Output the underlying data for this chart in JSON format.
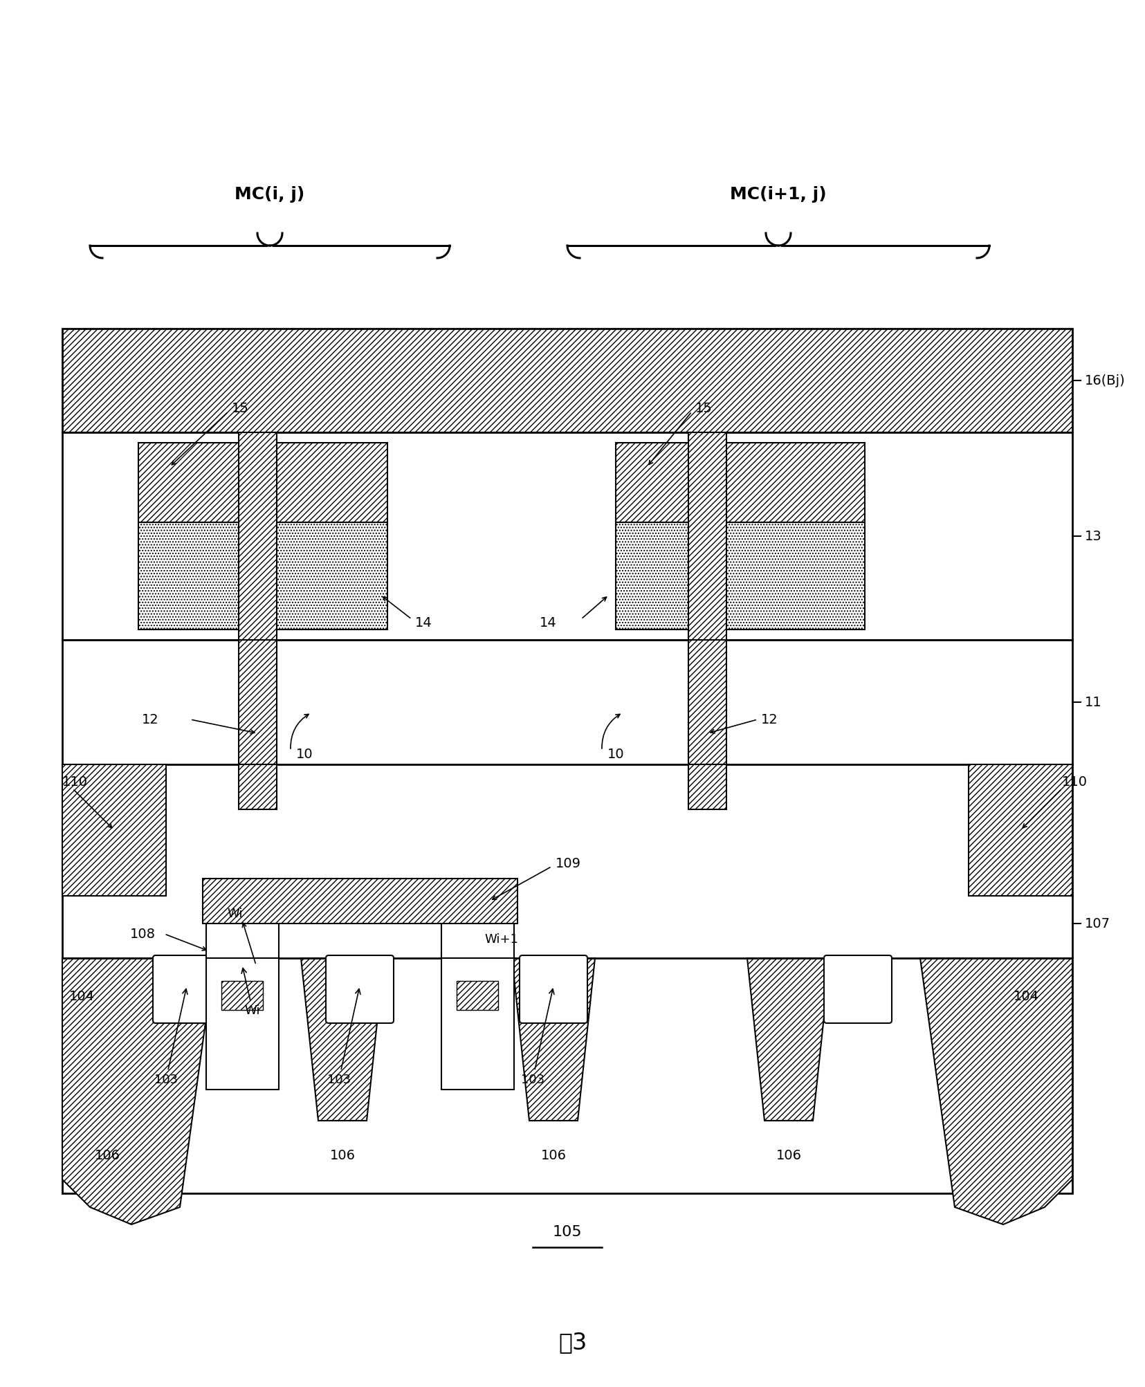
{
  "bg_color": "#ffffff",
  "lc": "#000000",
  "labels": {
    "MC_ij": "MC(i, j)",
    "MC_i1j": "MC(i+1, j)",
    "n16": "16(Bj)",
    "n13": "13",
    "n15": "15",
    "n14": "14",
    "n11": "11",
    "n12": "12",
    "n10": "10",
    "n107": "107",
    "n110": "110",
    "n109": "109",
    "n108": "108",
    "n104": "104",
    "nWi": "Wi",
    "nWi1": "Wi+1",
    "n103": "103",
    "n106": "106",
    "n105": "105"
  },
  "title": "图3"
}
